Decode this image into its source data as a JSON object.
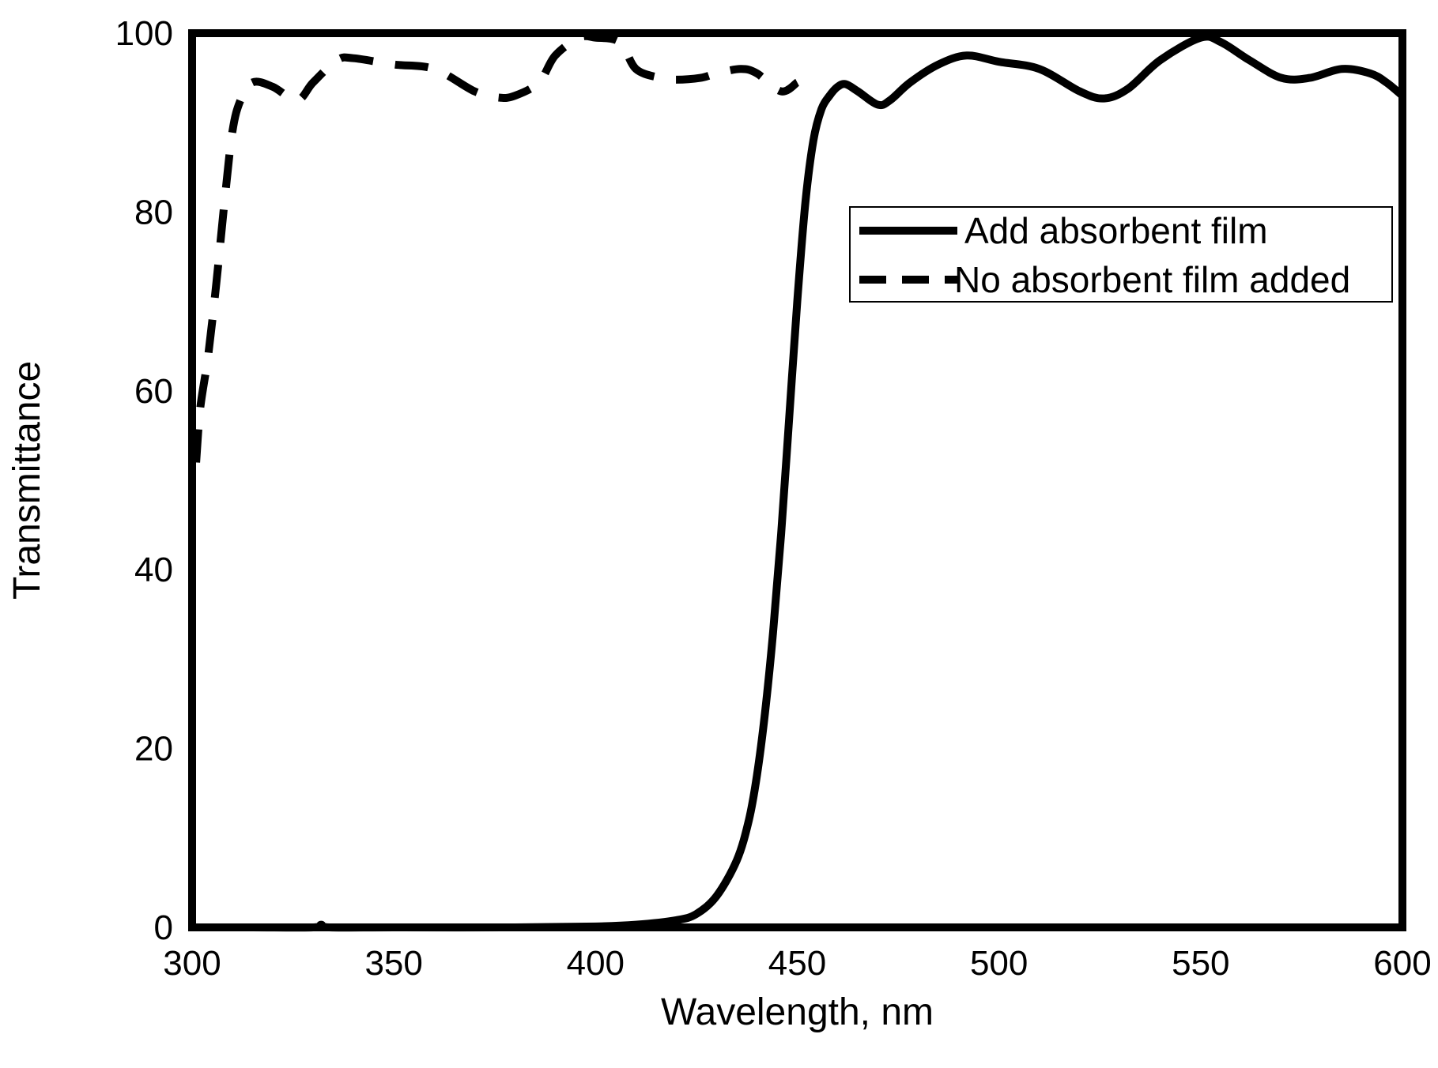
{
  "chart_data": {
    "type": "line",
    "xlabel": "Wavelength, nm",
    "ylabel": "Transmittance",
    "xlim": [
      300,
      600
    ],
    "ylim": [
      0,
      100
    ],
    "x_ticks": [
      300,
      350,
      400,
      450,
      500,
      550,
      600
    ],
    "y_ticks": [
      0,
      20,
      40,
      60,
      80,
      100
    ],
    "grid": false,
    "legend": "top-right",
    "line_color": "#000000",
    "series": [
      {
        "name": "Add absorbent film",
        "style": "solid",
        "x": [
          300,
          315,
          330,
          332,
          334,
          350,
          380,
          400,
          410,
          420,
          425,
          430,
          435,
          438,
          440,
          442,
          444,
          446,
          448,
          450,
          452,
          454,
          456,
          458,
          460,
          462,
          465,
          470,
          473,
          478,
          485,
          492,
          500,
          510,
          520,
          526,
          532,
          540,
          550,
          555,
          562,
          570,
          577,
          585,
          592,
          596,
          600
        ],
        "y": [
          0,
          0,
          0,
          0.3,
          0,
          0,
          0,
          0.1,
          0.3,
          0.8,
          1.5,
          3.5,
          7.5,
          12,
          17,
          24,
          33,
          44,
          57,
          70,
          81,
          88,
          91.5,
          93,
          94,
          94.3,
          93.5,
          92,
          92.5,
          94.5,
          96.5,
          97.5,
          96.8,
          96,
          93.5,
          92.7,
          93.8,
          97,
          99.5,
          99,
          97,
          95,
          95,
          96,
          95.5,
          94.5,
          93
        ]
      },
      {
        "name": "No absorbent film added",
        "style": "dashed",
        "x": [
          301,
          302,
          304,
          306,
          308,
          310,
          312,
          315,
          320,
          326,
          330,
          336,
          340,
          350,
          360,
          370,
          376,
          380,
          386,
          390,
          396,
          400,
          406,
          410,
          416,
          420,
          426,
          430,
          436,
          440,
          446,
          450
        ],
        "y": [
          52,
          58,
          64,
          72,
          81,
          89,
          92.5,
          94.5,
          94,
          92.5,
          94.5,
          97,
          97.2,
          96.5,
          96,
          93.5,
          92.8,
          93,
          94.5,
          97.5,
          99.5,
          99.5,
          99,
          96,
          95,
          94.8,
          95,
          95.5,
          96,
          95.5,
          93.5,
          94.5
        ]
      }
    ]
  }
}
